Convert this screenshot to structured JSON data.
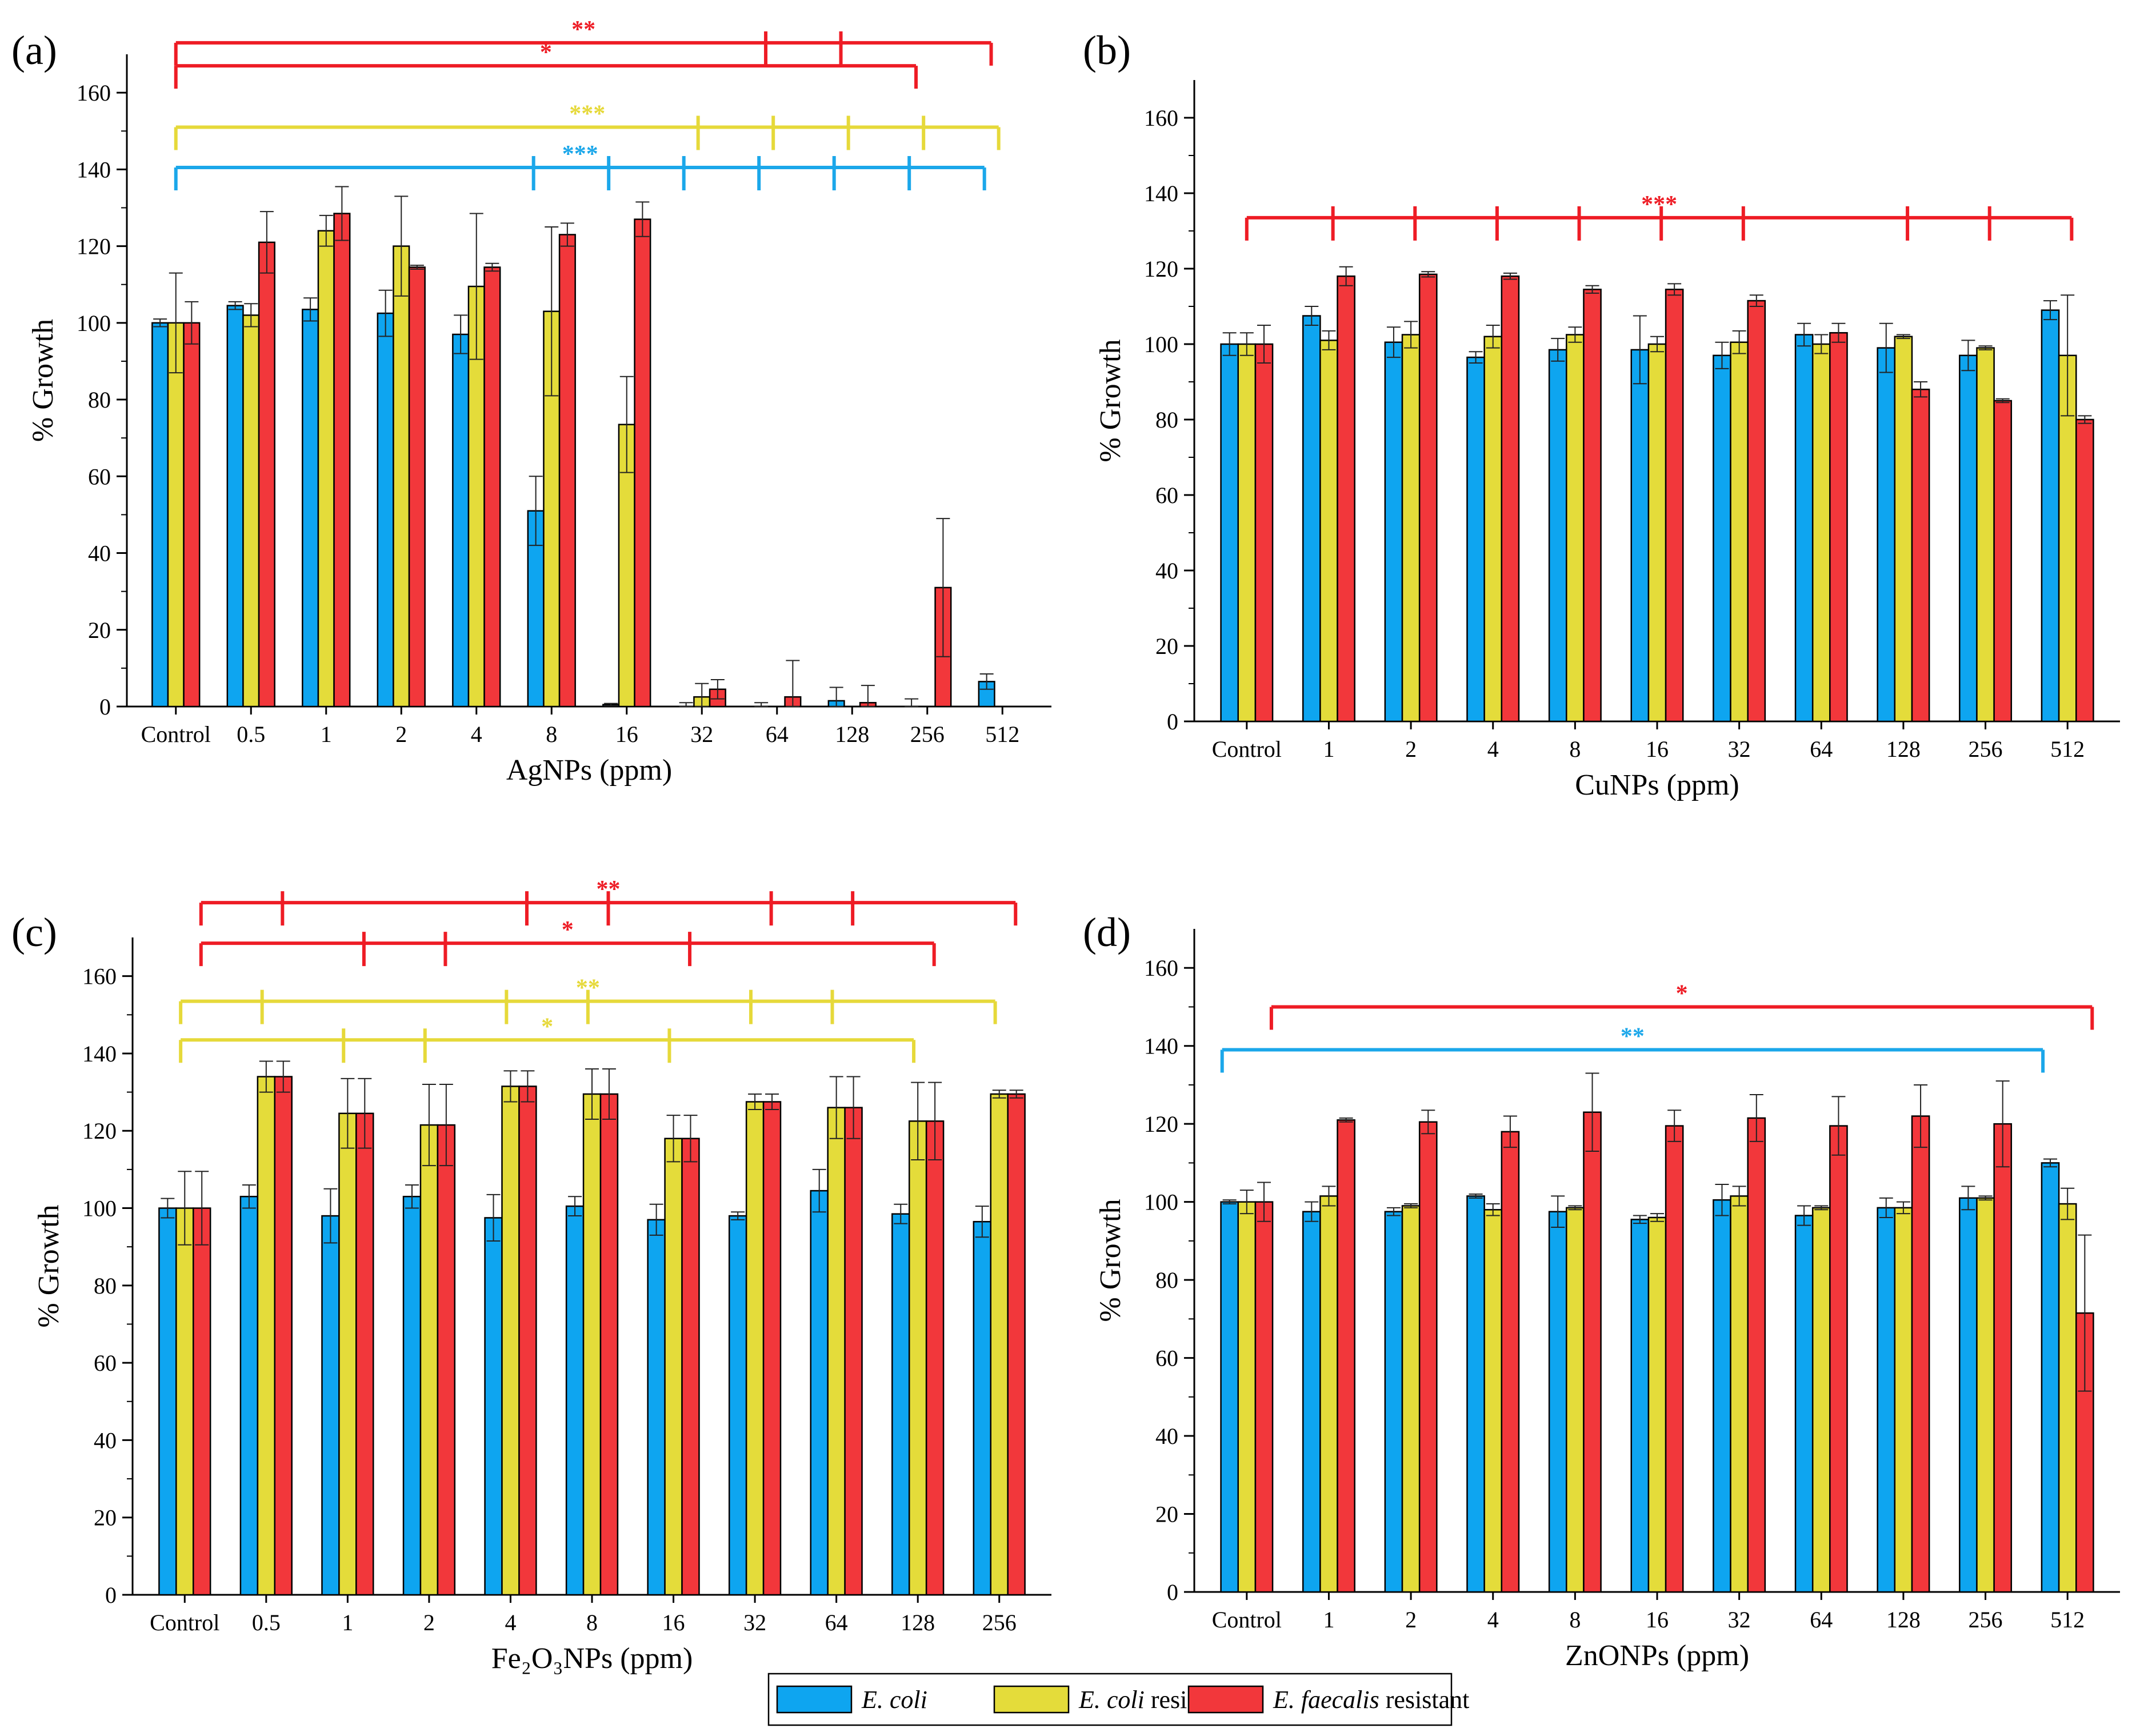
{
  "colors": {
    "ecoli": "#0ea5f0",
    "ecoli_resistant": "#e4dc3a",
    "efaecalis_resistant": "#f2373b",
    "sig_red": "#ee1c25",
    "sig_yellow": "#e6d93a",
    "sig_blue": "#1ba7ea",
    "axis": "#000000"
  },
  "legend": {
    "items": [
      {
        "key": "ecoli",
        "italic": "E. coli",
        "rest": ""
      },
      {
        "key": "ecoli_resistant",
        "italic": "E. coli",
        "rest": " resistant"
      },
      {
        "key": "efaecalis_resistant",
        "italic": "E. faecalis",
        "rest": " resistant"
      }
    ]
  },
  "chart_data": [
    {
      "type": "bar",
      "panel_label": "(a)",
      "xlabel": "AgNPs (ppm)",
      "ylabel": "% Growth",
      "ylim": [
        0,
        170
      ],
      "yticks": [
        0,
        20,
        40,
        60,
        80,
        100,
        120,
        140,
        160
      ],
      "categories": [
        "Control",
        "0.5",
        "1",
        "2",
        "4",
        "8",
        "16",
        "32",
        "64",
        "128",
        "256",
        "512"
      ],
      "series": [
        {
          "name": "E. coli",
          "values": [
            100,
            104.5,
            103.5,
            102.5,
            97,
            51,
            0.5,
            0,
            0,
            1.5,
            0,
            6.5
          ],
          "errors": [
            1,
            1,
            3,
            6,
            5,
            9,
            0.3,
            1,
            1,
            3.5,
            2,
            2
          ]
        },
        {
          "name": "E. coli resistant",
          "values": [
            100,
            102,
            124,
            120,
            109.5,
            103,
            73.5,
            2.5,
            0,
            0,
            0,
            0
          ],
          "errors": [
            13,
            3,
            4,
            13,
            19,
            22,
            12.5,
            3.5,
            0,
            0,
            0,
            0
          ]
        },
        {
          "name": "E. faecalis resistant",
          "values": [
            100,
            121,
            128.5,
            114.5,
            114.5,
            123,
            127,
            4.5,
            2.5,
            1,
            31,
            0
          ],
          "errors": [
            5.5,
            8,
            7,
            0.5,
            1,
            3,
            4.5,
            2.5,
            9.5,
            4.5,
            18,
            0
          ]
        }
      ],
      "significance": [
        {
          "color": "sig_red",
          "label": "**",
          "level": 173,
          "start": 0,
          "ticks": [
            7.85,
            8.85,
            10.85
          ]
        },
        {
          "color": "sig_red",
          "label": "*",
          "level": 167,
          "start": 0,
          "ticks": [
            9.85
          ]
        },
        {
          "color": "sig_yellow",
          "label": "***",
          "level": 151,
          "start": 0,
          "ticks": [
            6.95,
            7.95,
            8.95,
            9.95,
            10.95
          ]
        },
        {
          "color": "sig_blue",
          "label": "***",
          "level": 140.5,
          "start": 0,
          "ticks": [
            4.76,
            5.76,
            6.76,
            7.76,
            8.76,
            9.76,
            10.76
          ]
        }
      ]
    },
    {
      "type": "bar",
      "panel_label": "(b)",
      "xlabel": "CuNPs (ppm)",
      "ylabel": "% Growth",
      "ylim": [
        0,
        170
      ],
      "yticks": [
        0,
        20,
        40,
        60,
        80,
        100,
        120,
        140,
        160
      ],
      "categories": [
        "Control",
        "1",
        "2",
        "4",
        "8",
        "16",
        "32",
        "64",
        "128",
        "256",
        "512"
      ],
      "series": [
        {
          "name": "E. coli",
          "values": [
            100,
            107.5,
            100.5,
            96.5,
            98.5,
            98.5,
            97,
            102.5,
            99,
            97,
            109
          ],
          "errors": [
            3,
            2.5,
            4,
            1.5,
            3,
            9,
            3.5,
            3,
            6.5,
            4,
            2.5
          ]
        },
        {
          "name": "E. coli resistant",
          "values": [
            100,
            101,
            102.5,
            102,
            102.5,
            100,
            100.5,
            100,
            102,
            99,
            97
          ],
          "errors": [
            3,
            2.5,
            3.5,
            3,
            2,
            2,
            3,
            2.5,
            0.5,
            0.5,
            16
          ]
        },
        {
          "name": "E. faecalis resistant",
          "values": [
            100,
            118,
            118.5,
            118,
            114.5,
            114.5,
            111.5,
            103,
            88,
            85,
            80
          ],
          "errors": [
            5,
            2.5,
            0.7,
            0.8,
            1,
            1.5,
            1.5,
            2.5,
            2,
            0.5,
            1
          ]
        }
      ],
      "significance": [
        {
          "color": "sig_red",
          "label": "***",
          "level": 133.5,
          "start": 0,
          "ticks": [
            1.05,
            2.05,
            3.05,
            4.05,
            5.05,
            6.05,
            8.05,
            9.05,
            10.05
          ]
        }
      ]
    },
    {
      "type": "bar",
      "panel_label": "(c)",
      "xlabel": "Fe₂O₃NPs (ppm)",
      "ylabel": "% Growth",
      "ylim": [
        0,
        170
      ],
      "yticks": [
        0,
        20,
        40,
        60,
        80,
        100,
        120,
        140,
        160
      ],
      "categories": [
        "Control",
        "0.5",
        "1",
        "2",
        "4",
        "8",
        "16",
        "32",
        "64",
        "128",
        "256"
      ],
      "series": [
        {
          "name": "E. coli",
          "values": [
            100,
            103,
            98,
            103,
            97.5,
            100.5,
            97,
            98,
            104.5,
            98.5,
            96.5
          ],
          "errors": [
            2.5,
            3,
            7,
            3,
            6,
            2.5,
            4,
            1,
            5.5,
            2.5,
            4
          ]
        },
        {
          "name": "E. coli resistant",
          "values": [
            100,
            134,
            124.5,
            121.5,
            131.5,
            129.5,
            118,
            127.5,
            126,
            122.5,
            129.5
          ],
          "errors": [
            9.5,
            4,
            9,
            10.5,
            4,
            6.5,
            6,
            2,
            8,
            10,
            1
          ]
        },
        {
          "name": "E. faecalis resistant",
          "values": [
            100,
            134,
            124.5,
            121.5,
            131.5,
            129.5,
            118,
            127.5,
            126,
            122.5,
            129.5
          ],
          "errors": [
            9.5,
            4,
            9,
            10.5,
            4,
            6.5,
            6,
            2,
            8,
            10,
            1
          ]
        }
      ],
      "significance": [
        {
          "color": "sig_red",
          "label": "**",
          "level": 179,
          "start": 0.2,
          "ticks": [
            1.2,
            4.2,
            5.2,
            7.2,
            8.2,
            10.2
          ]
        },
        {
          "color": "sig_red",
          "label": "*",
          "level": 168.5,
          "start": 0.2,
          "ticks": [
            2.2,
            3.2,
            6.2,
            9.2
          ]
        },
        {
          "color": "sig_yellow",
          "label": "**",
          "level": 153.5,
          "start": -0.05,
          "ticks": [
            0.95,
            3.95,
            4.95,
            6.95,
            7.95,
            9.95
          ]
        },
        {
          "color": "sig_yellow",
          "label": "*",
          "level": 143.5,
          "start": -0.05,
          "ticks": [
            1.95,
            2.95,
            5.95,
            8.95
          ]
        }
      ]
    },
    {
      "type": "bar",
      "panel_label": "(d)",
      "xlabel": "ZnONPs (ppm)",
      "ylabel": "% Growth",
      "ylim": [
        0,
        170
      ],
      "yticks": [
        0,
        20,
        40,
        60,
        80,
        100,
        120,
        140,
        160
      ],
      "categories": [
        "Control",
        "1",
        "2",
        "4",
        "8",
        "16",
        "32",
        "64",
        "128",
        "256",
        "512"
      ],
      "series": [
        {
          "name": "E. coli",
          "values": [
            100,
            97.5,
            97.5,
            101.5,
            97.5,
            95.5,
            100.5,
            96.5,
            98.5,
            101,
            110
          ],
          "errors": [
            0.5,
            2.5,
            1,
            0.5,
            4,
            1,
            4,
            2.5,
            2.5,
            3,
            1
          ]
        },
        {
          "name": "E. coli resistant",
          "values": [
            100,
            101.5,
            99,
            98,
            98.5,
            96,
            101.5,
            98.5,
            98.5,
            101,
            99.5
          ],
          "errors": [
            3,
            2.5,
            0.5,
            1.5,
            0.5,
            1,
            2.5,
            0.5,
            1.5,
            0.5,
            4
          ]
        },
        {
          "name": "E. faecalis resistant",
          "values": [
            100,
            121,
            120.5,
            118,
            123,
            119.5,
            121.5,
            119.5,
            122,
            120,
            71.5
          ],
          "errors": [
            5,
            0.5,
            3,
            4,
            10,
            4,
            6,
            7.5,
            8,
            11,
            20
          ]
        }
      ],
      "significance": [
        {
          "color": "sig_red",
          "label": "*",
          "level": 150,
          "start": 0.3,
          "ticks": [
            10.3
          ]
        },
        {
          "color": "sig_blue",
          "label": "**",
          "level": 139,
          "start": -0.3,
          "ticks": [
            9.7
          ]
        }
      ]
    }
  ]
}
